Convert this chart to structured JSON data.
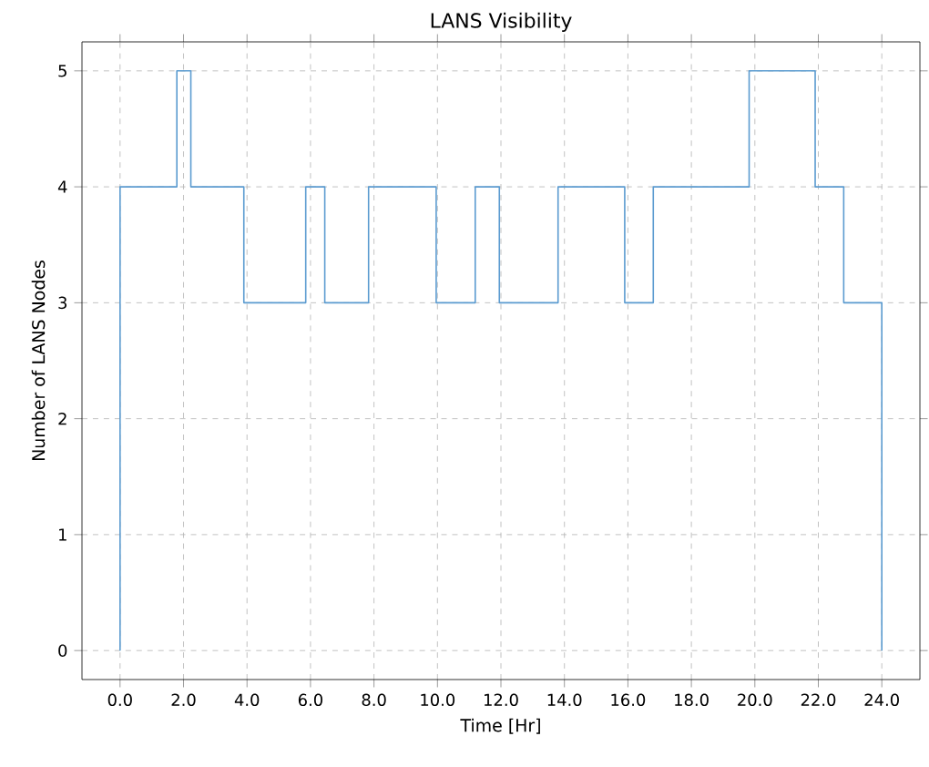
{
  "chart_data": {
    "type": "step",
    "title": "LANS Visibility",
    "xlabel": "Time [Hr]",
    "ylabel": "Number of LANS Nodes",
    "x": [
      0,
      0,
      1.79,
      2.23,
      3.9,
      5.85,
      6.45,
      7.83,
      9.96,
      11.19,
      11.95,
      13.8,
      15.9,
      16.8,
      19.82,
      21.9,
      22.8,
      24.0
    ],
    "values": [
      0,
      4,
      5,
      4,
      3,
      4,
      3,
      4,
      3,
      4,
      3,
      4,
      3,
      4,
      5,
      4,
      3,
      0
    ],
    "color": "#5b9bd0",
    "xlim": [
      -1.2,
      25.2
    ],
    "ylim": [
      -0.25,
      5.25
    ],
    "xticks": [
      {
        "value": 0,
        "label": "0.0"
      },
      {
        "value": 2,
        "label": "2.0"
      },
      {
        "value": 4,
        "label": "4.0"
      },
      {
        "value": 6,
        "label": "6.0"
      },
      {
        "value": 8,
        "label": "8.0"
      },
      {
        "value": 10,
        "label": "10.0"
      },
      {
        "value": 12,
        "label": "12.0"
      },
      {
        "value": 14,
        "label": "14.0"
      },
      {
        "value": 16,
        "label": "16.0"
      },
      {
        "value": 18,
        "label": "18.0"
      },
      {
        "value": 20,
        "label": "20.0"
      },
      {
        "value": 22,
        "label": "22.0"
      },
      {
        "value": 24,
        "label": "24.0"
      }
    ],
    "yticks": [
      0,
      1,
      2,
      3,
      4,
      5
    ],
    "grid": true
  }
}
